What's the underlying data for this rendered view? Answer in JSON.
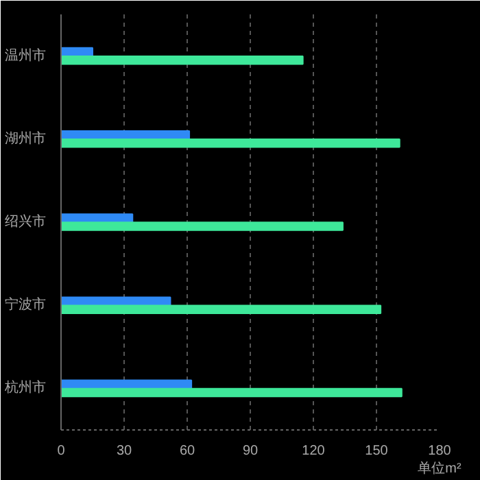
{
  "chart_data": {
    "type": "bar",
    "orientation": "horizontal",
    "categories": [
      "温州市",
      "湖州市",
      "绍兴市",
      "宁波市",
      "杭州市"
    ],
    "xlabel": "单位m²",
    "series": [
      {
        "color": "#2f8af5",
        "values": [
          15,
          61,
          34,
          52,
          62
        ]
      },
      {
        "color": "#3ee89a",
        "values": [
          115,
          161,
          134,
          152,
          162
        ]
      }
    ],
    "xlim": [
      0,
      180
    ],
    "xticks": [
      0,
      30,
      60,
      90,
      120,
      150,
      180
    ],
    "grid": "x"
  }
}
